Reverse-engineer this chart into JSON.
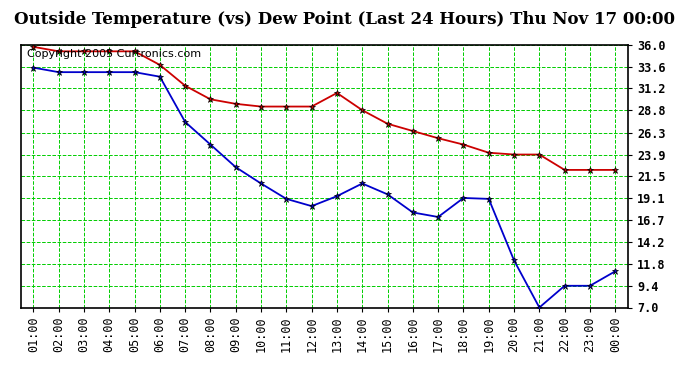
{
  "title": "Outside Temperature (vs) Dew Point (Last 24 Hours) Thu Nov 17 00:00",
  "copyright": "Copyright 2005 Curtronics.com",
  "x_labels": [
    "01:00",
    "02:00",
    "03:00",
    "04:00",
    "05:00",
    "06:00",
    "07:00",
    "08:00",
    "09:00",
    "10:00",
    "11:00",
    "12:00",
    "13:00",
    "14:00",
    "15:00",
    "16:00",
    "17:00",
    "18:00",
    "19:00",
    "20:00",
    "21:00",
    "22:00",
    "23:00",
    "00:00"
  ],
  "y_ticks": [
    7.0,
    9.4,
    11.8,
    14.2,
    16.7,
    19.1,
    21.5,
    23.9,
    26.3,
    28.8,
    31.2,
    33.6,
    36.0
  ],
  "ylim": [
    7.0,
    36.0
  ],
  "temp_data": [
    35.8,
    35.3,
    35.3,
    35.3,
    35.3,
    33.8,
    31.5,
    30.0,
    29.5,
    29.2,
    29.2,
    29.2,
    30.7,
    28.8,
    27.3,
    26.5,
    25.7,
    25.0,
    24.1,
    23.9,
    23.9,
    22.2,
    22.2,
    22.2
  ],
  "dew_data": [
    33.5,
    33.0,
    33.0,
    33.0,
    33.0,
    32.5,
    27.5,
    25.0,
    22.5,
    20.7,
    19.0,
    18.2,
    19.3,
    20.7,
    19.5,
    17.5,
    17.0,
    19.1,
    19.0,
    12.2,
    7.0,
    9.4,
    9.4,
    11.0
  ],
  "temp_color": "#cc0000",
  "dew_color": "#0000cc",
  "marker_color": "#000000",
  "bg_color": "#ffffff",
  "plot_bg_color": "#f0f0f0",
  "grid_color": "#00cc00",
  "axis_color": "#000000",
  "title_fontsize": 12,
  "copyright_fontsize": 8,
  "tick_fontsize": 8.5
}
